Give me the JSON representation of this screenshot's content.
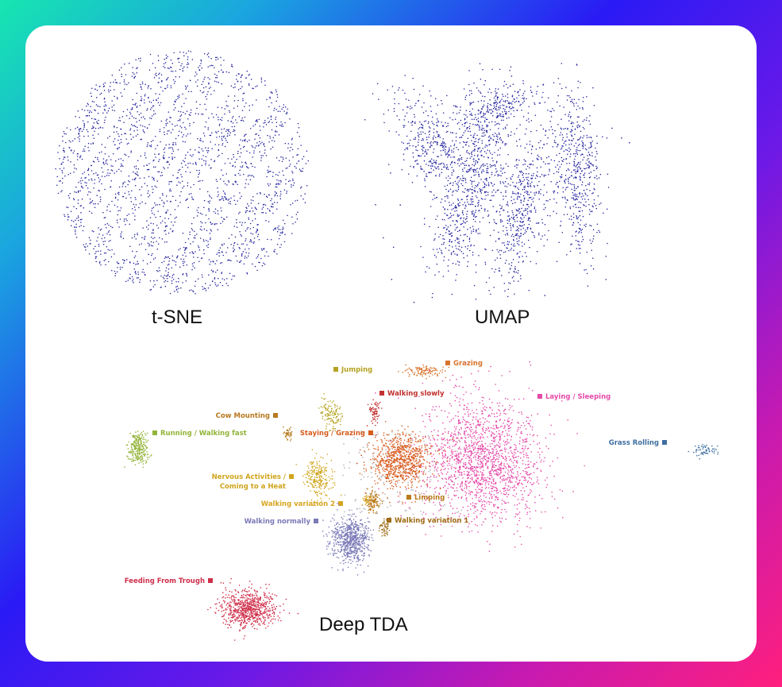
{
  "colors": {
    "embedding_point": "#1f1f9c",
    "unclustered_point": "#b8b8b8"
  },
  "chart_data": [
    {
      "type": "scatter",
      "title": "t-SNE",
      "caption": "t-SNE",
      "shape": "disc",
      "point_color": "#1f1f9c",
      "axes": false,
      "legend": "none"
    },
    {
      "type": "scatter",
      "title": "UMAP",
      "caption": "UMAP",
      "shape": "elongated-lobes",
      "point_color": "#1f1f9c",
      "axes": false,
      "legend": "none"
    },
    {
      "type": "scatter",
      "title": "Deep TDA",
      "caption": "Deep TDA",
      "axes": false,
      "legend": "labels-beside-clusters",
      "series": [
        {
          "name": "Jumping",
          "color": "#b5a222"
        },
        {
          "name": "Grazing",
          "color": "#d8732a"
        },
        {
          "name": "Walking slowly",
          "color": "#c2302f"
        },
        {
          "name": "Laying / Sleeping",
          "color": "#e54aa8"
        },
        {
          "name": "Cow Mounting",
          "color": "#b7791f"
        },
        {
          "name": "Running / Walking fast",
          "color": "#93b43a"
        },
        {
          "name": "Staying / Grazing",
          "color": "#d85c1e"
        },
        {
          "name": "Grass Rolling",
          "color": "#3f6fa0"
        },
        {
          "name": "Nervous Activities / Coming to a Heat",
          "label_lines": [
            "Nervous Activities /",
            "Coming to a Heat"
          ],
          "color": "#cfa51c"
        },
        {
          "name": "Limping",
          "color": "#b97a1a"
        },
        {
          "name": "Walking variation 2",
          "color": "#d8a520"
        },
        {
          "name": "Walking normally",
          "color": "#7b7ab8"
        },
        {
          "name": "Walking variation 1",
          "color": "#9e6b13"
        },
        {
          "name": "Feeding From Trough",
          "color": "#cf2f4a"
        }
      ]
    }
  ]
}
